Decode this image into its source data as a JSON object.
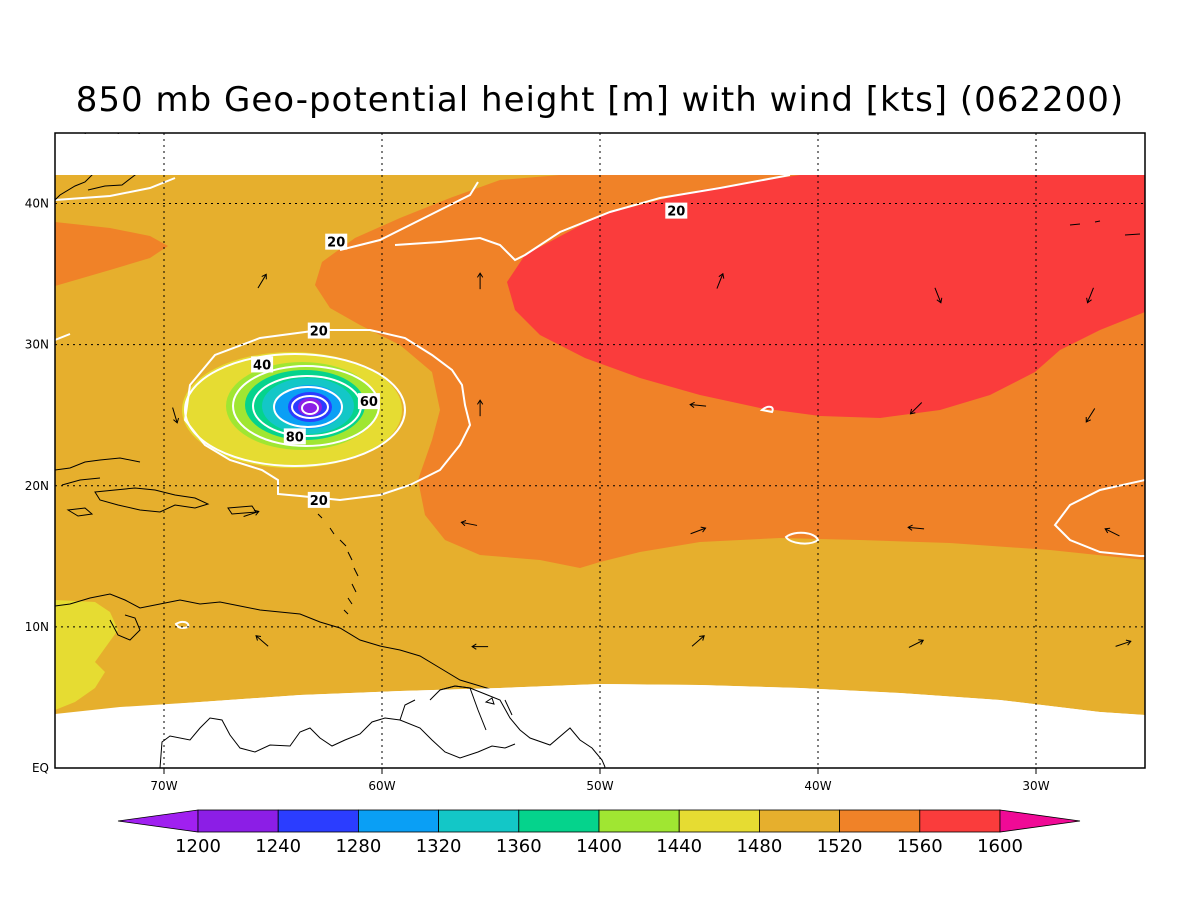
{
  "title": "850 mb Geo-potential height [m] with wind [kts] (062200)",
  "axes": {
    "x_ticks": [
      {
        "lon": -70,
        "label": "70W"
      },
      {
        "lon": -60,
        "label": "60W"
      },
      {
        "lon": -50,
        "label": "50W"
      },
      {
        "lon": -40,
        "label": "40W"
      },
      {
        "lon": -30,
        "label": "30W"
      }
    ],
    "y_ticks": [
      {
        "lat": 0,
        "label": "EQ"
      },
      {
        "lat": 10,
        "label": "10N"
      },
      {
        "lat": 20,
        "label": "20N"
      },
      {
        "lat": 30,
        "label": "30N"
      },
      {
        "lat": 40,
        "label": "40N"
      }
    ],
    "lon_range": [
      -75,
      -25
    ],
    "lat_range": [
      0,
      45
    ],
    "grid": "dotted"
  },
  "colorbar": {
    "levels": [
      1200,
      1240,
      1280,
      1320,
      1360,
      1400,
      1440,
      1480,
      1520,
      1560,
      1600
    ],
    "colors": [
      "#a020f0",
      "#8c1ee6",
      "#2b3dff",
      "#0a9ff5",
      "#13c7c7",
      "#05d38c",
      "#a0e632",
      "#e6dc32",
      "#e6af2d",
      "#f08228",
      "#fa3c3c",
      "#f00a96"
    ]
  },
  "wind_contours": [
    {
      "label": "20",
      "lon": -62.1,
      "lat": 37.3
    },
    {
      "label": "20",
      "lon": -46.5,
      "lat": 39.5
    },
    {
      "label": "20",
      "lon": -62.9,
      "lat": 31.0
    },
    {
      "label": "20",
      "lon": -62.9,
      "lat": 19.0
    },
    {
      "label": "40",
      "lon": -65.5,
      "lat": 28.6
    },
    {
      "label": "60",
      "lon": -60.6,
      "lat": 26.0
    },
    {
      "label": "80",
      "lon": -64.0,
      "lat": 23.5
    }
  ],
  "wind_vectors": [
    {
      "lon": -65.5,
      "lat": 34.5,
      "u": 0.6,
      "v": 1
    },
    {
      "lon": -55.5,
      "lat": 34.5,
      "u": 0,
      "v": 1
    },
    {
      "lon": -44.5,
      "lat": 34.5,
      "u": 0.4,
      "v": 1
    },
    {
      "lon": -34.5,
      "lat": 33.5,
      "u": 0.4,
      "v": -1
    },
    {
      "lon": -27.5,
      "lat": 33.5,
      "u": -0.4,
      "v": -1
    },
    {
      "lon": -55.5,
      "lat": 25.5,
      "u": 0,
      "v": 1
    },
    {
      "lon": -45.5,
      "lat": 25.7,
      "u": -1,
      "v": 0.1
    },
    {
      "lon": -35.5,
      "lat": 25.5,
      "u": -0.6,
      "v": -0.6
    },
    {
      "lon": -27.5,
      "lat": 25.0,
      "u": -0.5,
      "v": -0.8
    },
    {
      "lon": -66.0,
      "lat": 18.0,
      "u": 0.9,
      "v": 0.3
    },
    {
      "lon": -56.0,
      "lat": 17.3,
      "u": -1,
      "v": 0.2
    },
    {
      "lon": -45.5,
      "lat": 16.8,
      "u": 0.8,
      "v": 0.3
    },
    {
      "lon": -35.5,
      "lat": 17.0,
      "u": -1,
      "v": 0.1
    },
    {
      "lon": -26.5,
      "lat": 16.7,
      "u": -0.8,
      "v": 0.4
    },
    {
      "lon": -65.5,
      "lat": 9.0,
      "u": -0.7,
      "v": 0.6
    },
    {
      "lon": -55.5,
      "lat": 8.6,
      "u": -1,
      "v": 0
    },
    {
      "lon": -45.5,
      "lat": 9.0,
      "u": 0.7,
      "v": 0.6
    },
    {
      "lon": -35.5,
      "lat": 8.8,
      "u": 0.8,
      "v": 0.4
    },
    {
      "lon": -26.0,
      "lat": 8.8,
      "u": 0.9,
      "v": 0.3
    },
    {
      "lon": -69.5,
      "lat": 25.0,
      "u": 0.3,
      "v": -1
    }
  ]
}
